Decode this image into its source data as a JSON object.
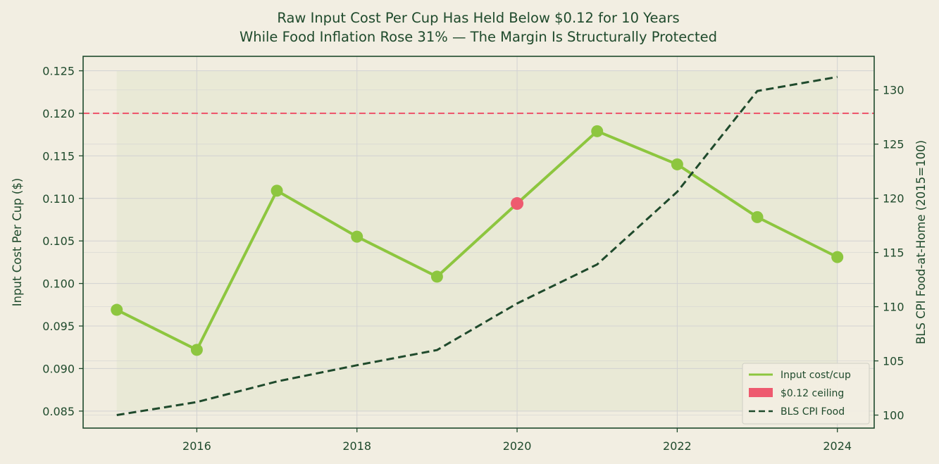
{
  "chart_data": {
    "type": "line",
    "title_lines": [
      "Raw Input Cost Per Cup Has Held Below $0.12 for 10 Years",
      "While Food Inflation Rose 31% — The Margin Is Structurally Protected"
    ],
    "xlabel": "",
    "ylabel_left": "Input Cost Per Cup ($)",
    "ylabel_right": "BLS CPI Food-at-Home (2015=100)",
    "x": [
      2015,
      2016,
      2017,
      2018,
      2019,
      2020,
      2021,
      2022,
      2023,
      2024
    ],
    "x_ticks": [
      2016,
      2018,
      2020,
      2022,
      2024
    ],
    "xlim": [
      2014.58,
      2024.46
    ],
    "ylim_left": [
      0.083,
      0.1267
    ],
    "ylim_right": [
      98.8,
      133.1
    ],
    "y_ticks_left": [
      "0.085",
      "0.090",
      "0.095",
      "0.100",
      "0.105",
      "0.110",
      "0.115",
      "0.120",
      "0.125"
    ],
    "y_ticks_right": [
      100,
      105,
      110,
      115,
      120,
      125,
      130
    ],
    "series": [
      {
        "name": "Input cost/cup",
        "axis": "left",
        "style": "solid-markers",
        "color": "#8dc63f",
        "values": [
          0.0969,
          0.0922,
          0.1109,
          0.1055,
          0.1008,
          0.1094,
          0.1179,
          0.114,
          0.1078,
          0.1031
        ],
        "highlight_index": 5,
        "highlight_color": "#ee5a6f"
      },
      {
        "name": "BLS CPI Food",
        "axis": "right",
        "style": "dashed",
        "color": "#1f4a2c",
        "values": [
          100.0,
          101.2,
          103.1,
          104.6,
          106.0,
          110.3,
          113.9,
          120.6,
          129.9,
          131.2
        ]
      }
    ],
    "reference_line": {
      "name": "$0.12 ceiling",
      "axis": "left",
      "value": 0.12,
      "color": "#ee5a6f"
    },
    "legend": {
      "placement": "bottom-right",
      "entries": [
        "Input cost/cup",
        "$0.12 ceiling",
        "BLS CPI Food"
      ]
    },
    "grid": true,
    "shaded_span": [
      2015,
      2024
    ],
    "colors": {
      "background": "#f2eee2",
      "plot_background": "#f1ede0",
      "shaded": "#e7e7d3",
      "grid": "#d2d2d2",
      "axis": "#1f4a2c"
    }
  }
}
